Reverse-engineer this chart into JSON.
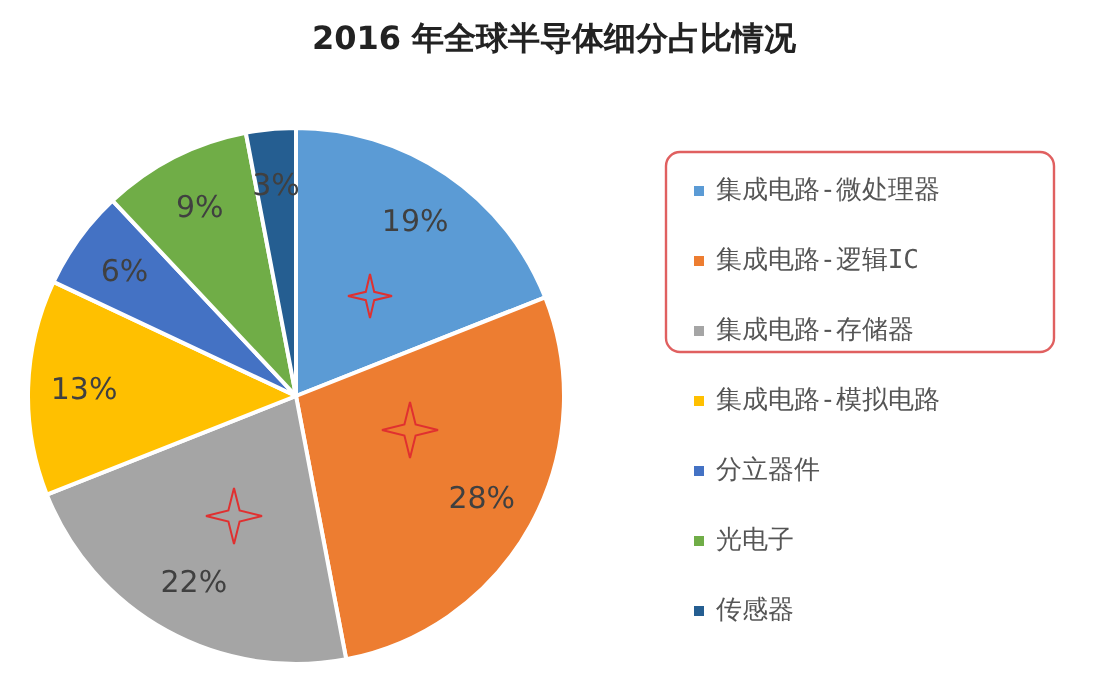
{
  "chart_data": {
    "type": "pie",
    "title": "2016 年全球半导体细分占比情况",
    "categories": [
      "集成电路-微处理器",
      "集成电路-逻辑IC",
      "集成电路-存储器",
      "集成电路-模拟电路",
      "分立器件",
      "光电子",
      "传感器"
    ],
    "values": [
      19,
      28,
      22,
      13,
      6,
      9,
      3
    ],
    "colors": [
      "#5b9bd5",
      "#ed7d31",
      "#a5a5a5",
      "#ffc000",
      "#4472c4",
      "#70ad47",
      "#255e91"
    ],
    "value_labels": [
      "19%",
      "28%",
      "22%",
      "13%",
      "6%",
      "9%",
      "3%"
    ],
    "legend": "right"
  }
}
